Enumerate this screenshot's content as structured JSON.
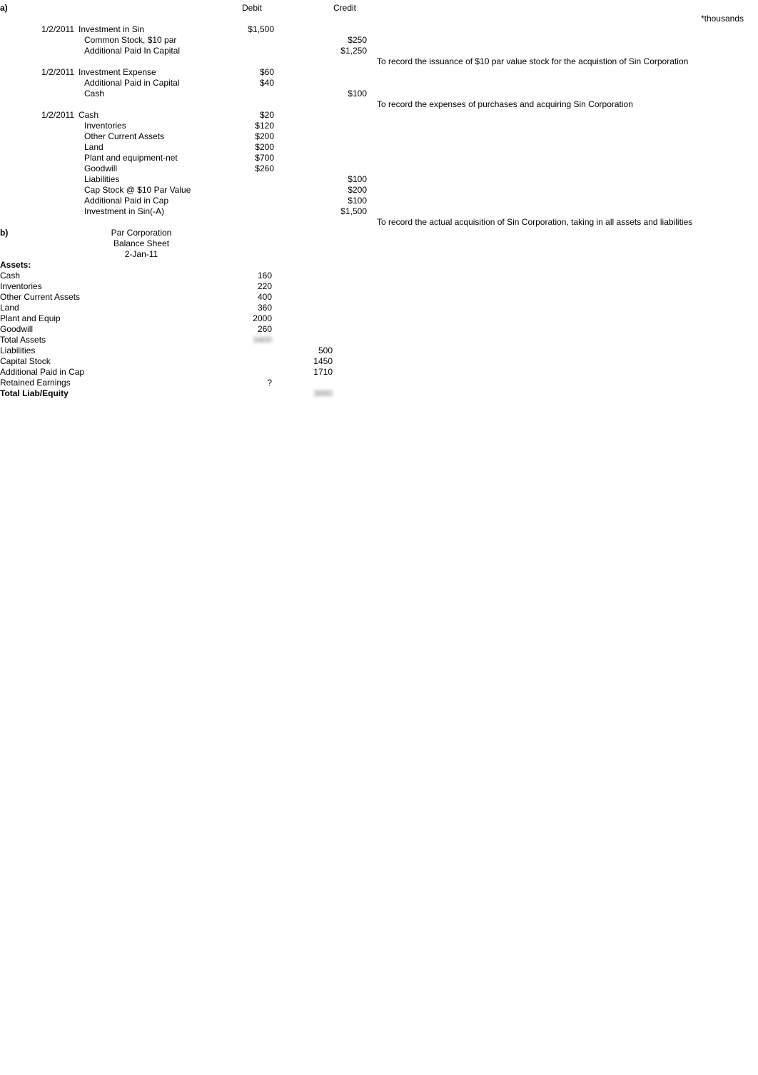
{
  "header": {
    "part_a": "a)",
    "debit_label": "Debit",
    "credit_label": "Credit",
    "note": "*thousands"
  },
  "journal": {
    "entries": [
      {
        "date": "1/2/2011",
        "lines": [
          {
            "account": "Investment in Sin",
            "debit": "$1,500",
            "credit": ""
          },
          {
            "account": "Common Stock, $10 par",
            "debit": "",
            "credit": "$250"
          },
          {
            "account": "Additional Paid In Capital",
            "debit": "",
            "credit": "$1,250"
          }
        ],
        "memo": "To record the issuance of $10 par value stock for the acquistion of Sin Corporation"
      },
      {
        "date": "1/2/2011",
        "lines": [
          {
            "account": "Investment Expense",
            "debit": "$60",
            "credit": ""
          },
          {
            "account": "Additional Paid in Capital",
            "debit": "$40",
            "credit": ""
          },
          {
            "account": "Cash",
            "debit": "",
            "credit": "$100"
          }
        ],
        "memo": "To record the expenses of purchases and acquiring Sin Corporation"
      },
      {
        "date": "1/2/2011",
        "lines": [
          {
            "account": "Cash",
            "debit": "$20",
            "credit": ""
          },
          {
            "account": "Inventories",
            "debit": "$120",
            "credit": ""
          },
          {
            "account": "Other Current Assets",
            "debit": "$200",
            "credit": ""
          },
          {
            "account": "Land",
            "debit": "$200",
            "credit": ""
          },
          {
            "account": "Plant and equipment-net",
            "debit": "$700",
            "credit": ""
          },
          {
            "account": "Goodwill",
            "debit": "$260",
            "credit": ""
          },
          {
            "account": "Liabilities",
            "debit": "",
            "credit": "$100"
          },
          {
            "account": "Cap Stock @ $10 Par Value",
            "debit": "",
            "credit": "$200"
          },
          {
            "account": "Additional Paid in Cap",
            "debit": "",
            "credit": "$100"
          },
          {
            "account": "Investment in Sin(-A)",
            "debit": "",
            "credit": "$1,500"
          }
        ],
        "memo": "To record the actual acquisition of Sin Corporation, taking in all assets and liabilities"
      }
    ]
  },
  "part_b": {
    "marker": "b)",
    "title1": "Par Corporation",
    "title2": "Balance Sheet",
    "title3": "2-Jan-11"
  },
  "balance_sheet": {
    "assets_header": "Assets:",
    "rows": [
      {
        "label": "Cash",
        "col1": "160",
        "col2": "",
        "bold": false
      },
      {
        "label": "Inventories",
        "col1": "220",
        "col2": "",
        "bold": false
      },
      {
        "label": "Other Current Assets",
        "col1": "400",
        "col2": "",
        "bold": false
      },
      {
        "label": "Land",
        "col1": "360",
        "col2": "",
        "bold": false
      },
      {
        "label": "Plant and Equip",
        "col1": "2000",
        "col2": "",
        "bold": false
      },
      {
        "label": "Goodwill",
        "col1": "260",
        "col2": "",
        "bold": false
      },
      {
        "label": "Total Assets",
        "col1": "3400",
        "col2": "",
        "bold": false,
        "blur1": true
      },
      {
        "label": "Liabilities",
        "col1": "",
        "col2": "500",
        "bold": false
      },
      {
        "label": "Capital Stock",
        "col1": "",
        "col2": "1450",
        "bold": false
      },
      {
        "label": "Additional Paid in Cap",
        "col1": "",
        "col2": "1710",
        "bold": false
      },
      {
        "label": "Retained Earnings",
        "col1": "?",
        "col2": "",
        "bold": false
      },
      {
        "label": "Total Liab/Equity",
        "col1": "",
        "col2": "3660",
        "bold": true,
        "blur2": true
      }
    ]
  }
}
